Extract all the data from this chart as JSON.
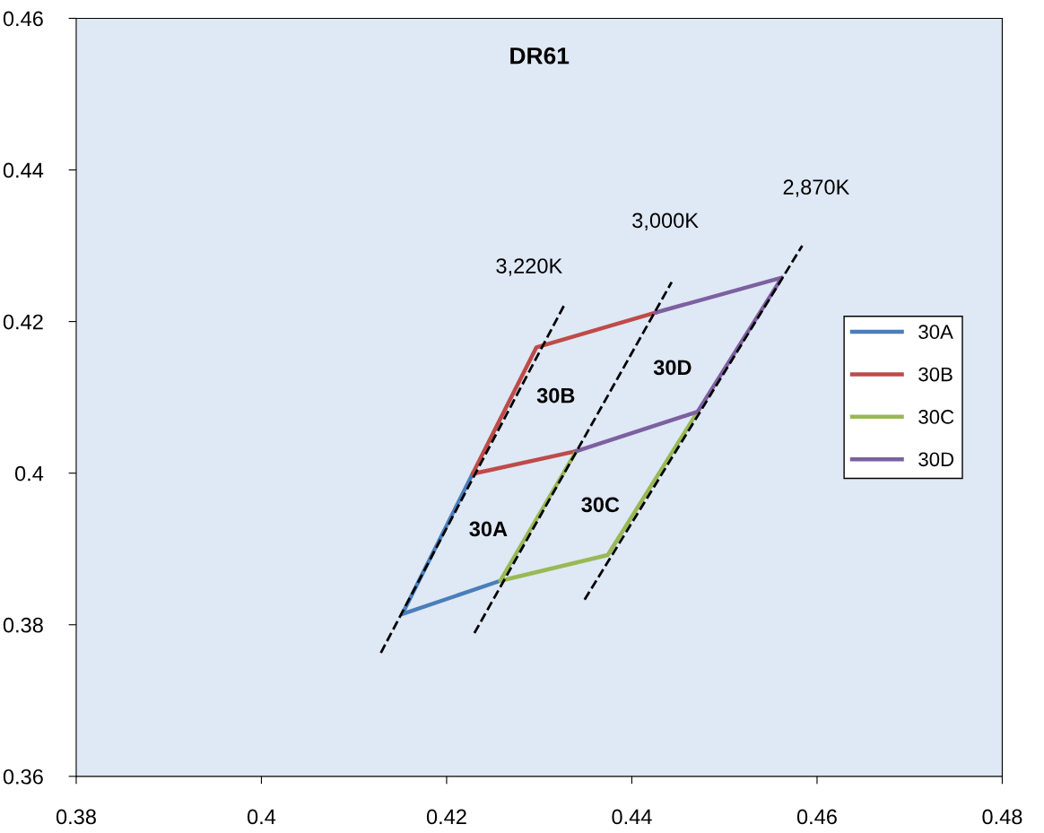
{
  "chart_data": {
    "type": "line",
    "title": "DR61",
    "xlim": [
      0.38,
      0.48
    ],
    "xticks": [
      0.38,
      0.4,
      0.42,
      0.44,
      0.46,
      0.48
    ],
    "ylim": [
      0.36,
      0.46
    ],
    "yticks": [
      0.36,
      0.38,
      0.4,
      0.42,
      0.44,
      0.46
    ],
    "grid": false,
    "legend": "right",
    "marker": "none",
    "series": [
      {
        "name": "30A",
        "color": "#4a7ebb",
        "x": [
          0.4228,
          0.4152,
          0.4258
        ],
        "values": [
          0.3999,
          0.3814,
          0.3858
        ]
      },
      {
        "name": "30B",
        "color": "#be4b48",
        "x": [
          0.434,
          0.4228,
          0.4297,
          0.4426
        ],
        "values": [
          0.4029,
          0.3999,
          0.4166,
          0.4212
        ]
      },
      {
        "name": "30C",
        "color": "#98b954",
        "x": [
          0.434,
          0.4258,
          0.4374,
          0.4471
        ],
        "values": [
          0.4029,
          0.3858,
          0.3892,
          0.4081
        ]
      },
      {
        "name": "30D",
        "color": "#7d60a0",
        "x": [
          0.4426,
          0.4562,
          0.4471,
          0.434
        ],
        "values": [
          0.4212,
          0.4258,
          0.4081,
          0.4029
        ]
      },
      {
        "color": "#000000",
        "line_style": "dashed",
        "x": [
          0.4129,
          0.4328
        ],
        "values": [
          0.3763,
          0.4224
        ]
      },
      {
        "color": "#000000",
        "line_style": "dashed",
        "x": [
          0.423,
          0.4443
        ],
        "values": [
          0.3789,
          0.4252
        ]
      },
      {
        "color": "#000000",
        "line_style": "dashed",
        "x": [
          0.4349,
          0.4584
        ],
        "values": [
          0.3833,
          0.43
        ]
      }
    ],
    "annotations": [
      "3,220K",
      "3,000K",
      "2,870K",
      "30A",
      "30B",
      "30C",
      "30D"
    ]
  }
}
